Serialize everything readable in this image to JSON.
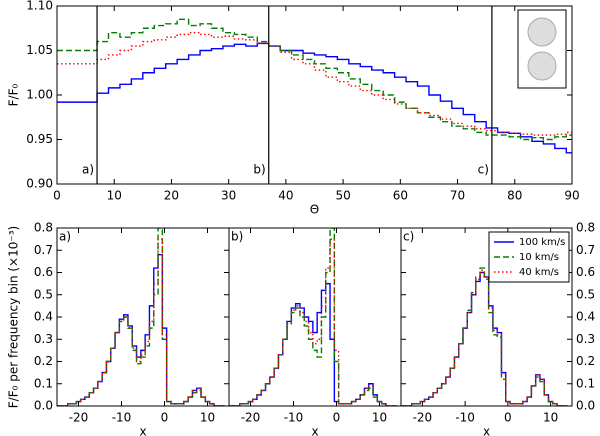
{
  "chart_data": [
    {
      "type": "line",
      "xlabel": "Θ",
      "ylabel": "F/F₀",
      "xlim": [
        0,
        90
      ],
      "ylim": [
        0.9,
        1.1
      ],
      "xticks": [
        0,
        10,
        20,
        30,
        40,
        50,
        60,
        70,
        80,
        90
      ],
      "yticks": [
        {
          "value": 0.9,
          "label": "0.90"
        },
        {
          "value": 0.95,
          "label": "0.95"
        },
        {
          "value": 1.0,
          "label": "1.00"
        },
        {
          "value": 1.05,
          "label": "1.05"
        },
        {
          "value": 1.1,
          "label": "1.10"
        }
      ],
      "markers": [
        {
          "x": 7,
          "label": "a)"
        },
        {
          "x": 37,
          "label": "b)"
        },
        {
          "x": 76,
          "label": "c)"
        }
      ],
      "x": [
        0,
        2,
        4,
        6,
        8,
        10,
        12,
        14,
        16,
        18,
        20,
        22,
        24,
        26,
        28,
        30,
        32,
        34,
        36,
        38,
        40,
        42,
        44,
        46,
        48,
        50,
        52,
        54,
        56,
        58,
        60,
        62,
        64,
        66,
        68,
        70,
        72,
        74,
        76,
        78,
        80,
        82,
        84,
        86,
        88,
        90
      ],
      "series": [
        {
          "color": "#0000ff",
          "linestyle": "solid",
          "values": [
            0.992,
            0.992,
            0.992,
            0.992,
            1.002,
            1.008,
            1.012,
            1.018,
            1.025,
            1.03,
            1.035,
            1.04,
            1.045,
            1.05,
            1.052,
            1.055,
            1.057,
            1.055,
            1.058,
            1.055,
            1.05,
            1.05,
            1.047,
            1.045,
            1.043,
            1.04,
            1.035,
            1.032,
            1.028,
            1.025,
            1.02,
            1.015,
            1.01,
            1.0,
            0.993,
            0.985,
            0.978,
            0.97,
            0.963,
            0.958,
            0.957,
            0.953,
            0.948,
            0.945,
            0.94,
            0.935
          ]
        },
        {
          "color": "#008000",
          "linestyle": "dashed",
          "values": [
            1.05,
            1.05,
            1.05,
            1.05,
            1.06,
            1.07,
            1.065,
            1.07,
            1.075,
            1.078,
            1.08,
            1.085,
            1.078,
            1.08,
            1.075,
            1.07,
            1.068,
            1.065,
            1.06,
            1.055,
            1.05,
            1.045,
            1.04,
            1.035,
            1.03,
            1.025,
            1.018,
            1.012,
            1.005,
            1.0,
            0.992,
            0.985,
            0.98,
            0.975,
            0.97,
            0.965,
            0.962,
            0.958,
            0.955,
            0.955,
            0.953,
            0.95,
            0.952,
            0.95,
            0.953,
            0.955
          ]
        },
        {
          "color": "#ff0000",
          "linestyle": "dotted",
          "values": [
            1.035,
            1.035,
            1.035,
            1.035,
            1.04,
            1.045,
            1.05,
            1.055,
            1.06,
            1.062,
            1.065,
            1.068,
            1.07,
            1.068,
            1.065,
            1.066,
            1.063,
            1.062,
            1.058,
            1.055,
            1.048,
            1.04,
            1.035,
            1.028,
            1.02,
            1.015,
            1.01,
            1.005,
            1.0,
            0.995,
            0.99,
            0.985,
            0.98,
            0.977,
            0.973,
            0.968,
            0.965,
            0.962,
            0.96,
            0.958,
            0.957,
            0.956,
            0.955,
            0.955,
            0.956,
            0.958
          ]
        }
      ]
    },
    {
      "type": "line",
      "label": "a)",
      "xlabel": "x",
      "ylabel": "F/F₀ per frequency bin (×10⁻³)",
      "xlim": [
        -25,
        15
      ],
      "ylim": [
        0,
        0.8
      ],
      "xticks": [
        -20,
        -10,
        0,
        10
      ],
      "yticks": [
        {
          "value": 0,
          "label": "0.0"
        },
        0.1,
        0.2,
        0.3,
        0.4,
        0.5,
        0.6,
        0.7,
        0.8
      ],
      "x": [
        -25,
        -24,
        -23,
        -22,
        -21,
        -20,
        -19,
        -18,
        -17,
        -16,
        -15,
        -14,
        -13,
        -12,
        -11,
        -10,
        -9,
        -8,
        -7,
        -6,
        -5,
        -4,
        -3,
        -2,
        -1,
        0,
        1,
        2,
        3,
        4,
        5,
        6,
        7,
        8,
        9,
        10,
        11,
        12,
        13,
        14
      ],
      "series": [
        {
          "color": "#0000ff",
          "linestyle": "solid",
          "values": [
            0,
            0,
            0,
            0.01,
            0.01,
            0.02,
            0.03,
            0.04,
            0.06,
            0.08,
            0.11,
            0.15,
            0.2,
            0.26,
            0.33,
            0.39,
            0.41,
            0.36,
            0.27,
            0.22,
            0.25,
            0.32,
            0.45,
            0.62,
            0.68,
            0.35,
            0.02,
            0.01,
            0.01,
            0.01,
            0.02,
            0.04,
            0.07,
            0.08,
            0.04,
            0.02,
            0.01,
            0,
            0,
            0
          ]
        },
        {
          "color": "#008000",
          "linestyle": "dashed",
          "values": [
            0,
            0,
            0,
            0.01,
            0.01,
            0.02,
            0.03,
            0.04,
            0.06,
            0.08,
            0.11,
            0.15,
            0.2,
            0.26,
            0.33,
            0.38,
            0.4,
            0.35,
            0.25,
            0.19,
            0.22,
            0.27,
            0.35,
            0.5,
            0.8,
            0.3,
            0.02,
            0.01,
            0.01,
            0.01,
            0.02,
            0.04,
            0.06,
            0.07,
            0.04,
            0.02,
            0.01,
            0,
            0,
            0
          ]
        },
        {
          "color": "#ff0000",
          "linestyle": "dotted",
          "values": [
            0,
            0,
            0,
            0.01,
            0.01,
            0.02,
            0.03,
            0.04,
            0.06,
            0.08,
            0.11,
            0.15,
            0.2,
            0.26,
            0.33,
            0.38,
            0.4,
            0.35,
            0.26,
            0.2,
            0.23,
            0.29,
            0.38,
            0.55,
            0.75,
            0.32,
            0.02,
            0.01,
            0.01,
            0.01,
            0.02,
            0.04,
            0.07,
            0.08,
            0.04,
            0.02,
            0.01,
            0,
            0,
            0
          ]
        }
      ]
    },
    {
      "type": "line",
      "label": "b)",
      "xlabel": "x",
      "xlim": [
        -25,
        15
      ],
      "ylim": [
        0,
        0.8
      ],
      "xticks": [
        -20,
        -10,
        0,
        10
      ],
      "x": [
        -25,
        -24,
        -23,
        -22,
        -21,
        -20,
        -19,
        -18,
        -17,
        -16,
        -15,
        -14,
        -13,
        -12,
        -11,
        -10,
        -9,
        -8,
        -7,
        -6,
        -5,
        -4,
        -3,
        -2,
        -1,
        0,
        1,
        2,
        3,
        4,
        5,
        6,
        7,
        8,
        9,
        10,
        11,
        12,
        13,
        14
      ],
      "series": [
        {
          "color": "#0000ff",
          "linestyle": "solid",
          "values": [
            0,
            0,
            0,
            0.01,
            0.01,
            0.02,
            0.03,
            0.05,
            0.07,
            0.1,
            0.13,
            0.17,
            0.23,
            0.3,
            0.38,
            0.44,
            0.46,
            0.44,
            0.4,
            0.38,
            0.33,
            0.42,
            0.52,
            0.55,
            0.3,
            0.02,
            0.01,
            0.01,
            0.01,
            0.02,
            0.03,
            0.05,
            0.08,
            0.1,
            0.05,
            0.02,
            0.01,
            0,
            0,
            0
          ]
        },
        {
          "color": "#008000",
          "linestyle": "dashed",
          "values": [
            0,
            0,
            0,
            0.01,
            0.01,
            0.02,
            0.03,
            0.05,
            0.07,
            0.1,
            0.13,
            0.17,
            0.23,
            0.3,
            0.37,
            0.42,
            0.44,
            0.4,
            0.36,
            0.3,
            0.25,
            0.22,
            0.4,
            0.6,
            0.8,
            0.2,
            0.01,
            0.01,
            0.01,
            0.02,
            0.03,
            0.05,
            0.07,
            0.08,
            0.04,
            0.02,
            0.01,
            0,
            0,
            0
          ]
        },
        {
          "color": "#ff0000",
          "linestyle": "dotted",
          "values": [
            0,
            0,
            0,
            0.01,
            0.01,
            0.02,
            0.03,
            0.05,
            0.07,
            0.1,
            0.13,
            0.17,
            0.23,
            0.3,
            0.37,
            0.43,
            0.45,
            0.42,
            0.38,
            0.33,
            0.28,
            0.3,
            0.45,
            0.62,
            0.75,
            0.25,
            0.01,
            0.01,
            0.01,
            0.02,
            0.03,
            0.05,
            0.08,
            0.09,
            0.04,
            0.02,
            0.01,
            0,
            0,
            0
          ]
        }
      ]
    },
    {
      "type": "line",
      "label": "c)",
      "xlabel": "x",
      "legend": "upper right",
      "right_axis": true,
      "xlim": [
        -25,
        15
      ],
      "ylim": [
        0,
        0.8
      ],
      "xticks": [
        -20,
        -10,
        0,
        10
      ],
      "yticks": [
        {
          "value": 0,
          "label": "0.0"
        },
        0.1,
        0.2,
        0.3,
        0.4,
        0.5,
        0.6,
        0.7,
        0.8
      ],
      "x": [
        -25,
        -24,
        -23,
        -22,
        -21,
        -20,
        -19,
        -18,
        -17,
        -16,
        -15,
        -14,
        -13,
        -12,
        -11,
        -10,
        -9,
        -8,
        -7,
        -6,
        -5,
        -4,
        -3,
        -2,
        -1,
        0,
        1,
        2,
        3,
        4,
        5,
        6,
        7,
        8,
        9,
        10,
        11,
        12,
        13,
        14
      ],
      "series": [
        {
          "name": "100 km/s",
          "color": "#0000ff",
          "linestyle": "solid",
          "values": [
            0,
            0,
            0,
            0.01,
            0.01,
            0.02,
            0.03,
            0.04,
            0.06,
            0.08,
            0.1,
            0.13,
            0.17,
            0.22,
            0.28,
            0.35,
            0.42,
            0.5,
            0.56,
            0.6,
            0.58,
            0.45,
            0.35,
            0.33,
            0.15,
            0.02,
            0.01,
            0.01,
            0.01,
            0.02,
            0.04,
            0.09,
            0.14,
            0.12,
            0.05,
            0.02,
            0.01,
            0,
            0,
            0
          ]
        },
        {
          "name": "10 km/s",
          "color": "#008000",
          "linestyle": "dashed",
          "values": [
            0,
            0,
            0,
            0.01,
            0.01,
            0.02,
            0.03,
            0.04,
            0.06,
            0.08,
            0.1,
            0.13,
            0.17,
            0.22,
            0.28,
            0.35,
            0.43,
            0.51,
            0.58,
            0.62,
            0.57,
            0.42,
            0.32,
            0.31,
            0.12,
            0.02,
            0.01,
            0.01,
            0.01,
            0.02,
            0.04,
            0.09,
            0.13,
            0.11,
            0.05,
            0.02,
            0.01,
            0,
            0,
            0
          ]
        },
        {
          "name": "40 km/s",
          "color": "#ff0000",
          "linestyle": "dotted",
          "values": [
            0,
            0,
            0,
            0.01,
            0.01,
            0.02,
            0.03,
            0.04,
            0.06,
            0.08,
            0.1,
            0.13,
            0.17,
            0.22,
            0.28,
            0.35,
            0.42,
            0.5,
            0.57,
            0.61,
            0.58,
            0.44,
            0.34,
            0.32,
            0.14,
            0.02,
            0.01,
            0.01,
            0.01,
            0.02,
            0.04,
            0.09,
            0.14,
            0.12,
            0.05,
            0.02,
            0.01,
            0,
            0,
            0
          ]
        }
      ]
    }
  ]
}
